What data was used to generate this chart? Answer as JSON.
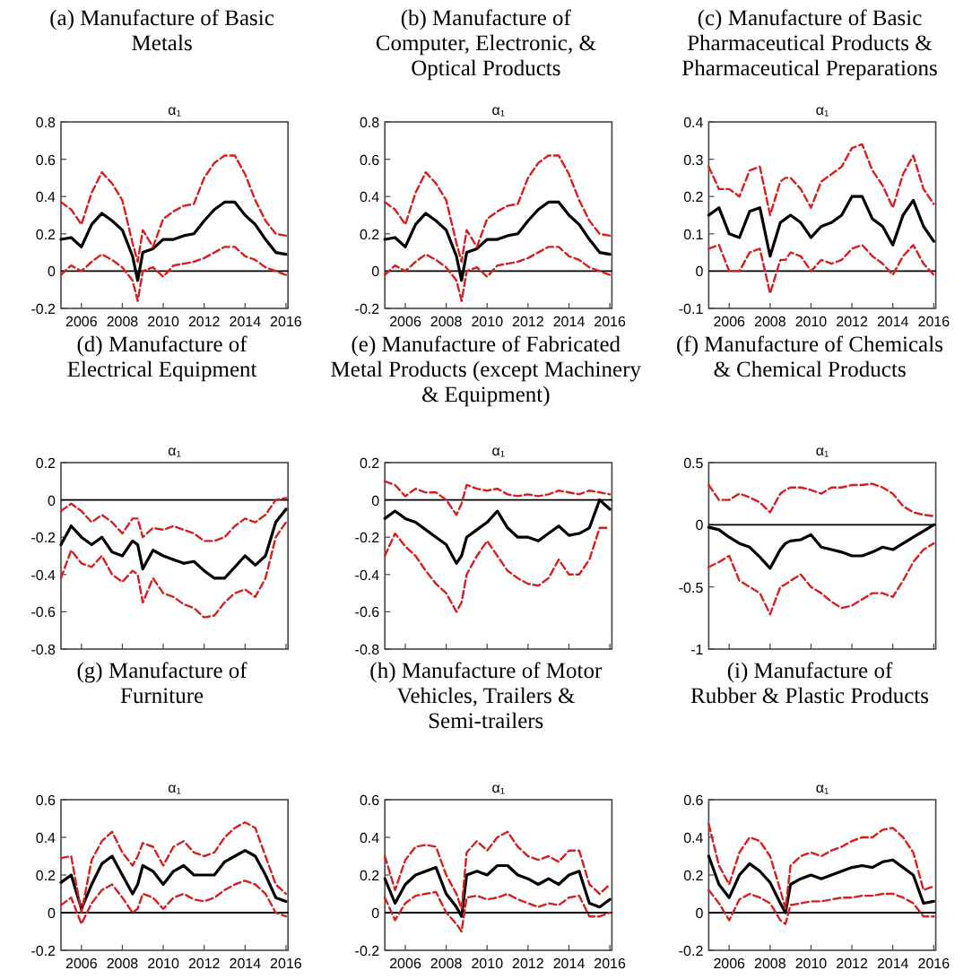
{
  "chart_data": [
    {
      "type": "line",
      "title": "(a) Manufacture of Basic\nMetals",
      "subtitle": "α₁",
      "x": [
        2005,
        2005.5,
        2006,
        2006.5,
        2007,
        2007.5,
        2008,
        2008.5,
        2008.75,
        2009,
        2009.5,
        2010,
        2010.5,
        2011,
        2011.5,
        2012,
        2012.5,
        2013,
        2013.5,
        2014,
        2014.5,
        2015,
        2015.5,
        2016
      ],
      "xlim": [
        2005,
        2016.1
      ],
      "xticks": [
        2006,
        2008,
        2010,
        2012,
        2014,
        2016
      ],
      "ylim": [
        -0.2,
        0.8
      ],
      "yticks": [
        -0.2,
        0,
        0.2,
        0.4,
        0.6,
        0.8
      ],
      "ref_lines": [
        {
          "axis": "y",
          "value": 0,
          "color": "#000000"
        }
      ],
      "series": [
        {
          "color": "#000000",
          "line_style": "solid",
          "values": [
            0.17,
            0.18,
            0.13,
            0.25,
            0.31,
            0.27,
            0.22,
            0.08,
            -0.05,
            0.1,
            0.12,
            0.17,
            0.17,
            0.19,
            0.2,
            0.27,
            0.33,
            0.37,
            0.37,
            0.3,
            0.25,
            0.17,
            0.1,
            0.09
          ]
        },
        {
          "color": "#d42020",
          "line_style": "dashed",
          "values": [
            0.37,
            0.33,
            0.25,
            0.42,
            0.53,
            0.47,
            0.38,
            0.15,
            0.05,
            0.22,
            0.13,
            0.28,
            0.32,
            0.35,
            0.36,
            0.5,
            0.58,
            0.62,
            0.62,
            0.52,
            0.38,
            0.27,
            0.2,
            0.19
          ]
        },
        {
          "color": "#d42020",
          "line_style": "dashed",
          "values": [
            -0.02,
            0.03,
            0.0,
            0.05,
            0.09,
            0.06,
            0.02,
            -0.05,
            -0.16,
            0.0,
            0.02,
            -0.03,
            0.03,
            0.04,
            0.05,
            0.07,
            0.1,
            0.13,
            0.13,
            0.08,
            0.06,
            0.02,
            0.0,
            -0.02
          ]
        }
      ]
    },
    {
      "type": "line",
      "title": "(b) Manufacture of\nComputer, Electronic, &\nOptical Products",
      "subtitle": "α₁",
      "x": [
        2005,
        2005.5,
        2006,
        2006.5,
        2007,
        2007.5,
        2008,
        2008.5,
        2008.75,
        2009,
        2009.5,
        2010,
        2010.5,
        2011,
        2011.5,
        2012,
        2012.5,
        2013,
        2013.5,
        2014,
        2014.5,
        2015,
        2015.5,
        2016
      ],
      "xlim": [
        2005,
        2016.1
      ],
      "xticks": [
        2006,
        2008,
        2010,
        2012,
        2014,
        2016
      ],
      "ylim": [
        -0.2,
        0.8
      ],
      "yticks": [
        -0.2,
        0,
        0.2,
        0.4,
        0.6,
        0.8
      ],
      "ref_lines": [
        {
          "axis": "y",
          "value": 0,
          "color": "#000000"
        }
      ],
      "series": [
        {
          "color": "#000000",
          "line_style": "solid",
          "values": [
            0.17,
            0.18,
            0.13,
            0.25,
            0.31,
            0.27,
            0.22,
            0.08,
            -0.05,
            0.1,
            0.12,
            0.17,
            0.17,
            0.19,
            0.2,
            0.27,
            0.33,
            0.37,
            0.37,
            0.3,
            0.25,
            0.17,
            0.1,
            0.09
          ]
        },
        {
          "color": "#d42020",
          "line_style": "dashed",
          "values": [
            0.37,
            0.33,
            0.25,
            0.42,
            0.53,
            0.47,
            0.38,
            0.15,
            0.05,
            0.22,
            0.13,
            0.28,
            0.32,
            0.35,
            0.36,
            0.5,
            0.58,
            0.62,
            0.62,
            0.52,
            0.38,
            0.27,
            0.2,
            0.19
          ]
        },
        {
          "color": "#d42020",
          "line_style": "dashed",
          "values": [
            -0.02,
            0.03,
            0.0,
            0.05,
            0.09,
            0.06,
            0.02,
            -0.05,
            -0.16,
            0.0,
            0.02,
            -0.03,
            0.03,
            0.04,
            0.05,
            0.07,
            0.1,
            0.13,
            0.13,
            0.08,
            0.06,
            0.02,
            0.0,
            -0.02
          ]
        }
      ]
    },
    {
      "type": "line",
      "title": "(c) Manufacture of Basic\nPharmaceutical Products &\nPharmaceutical Preparations",
      "subtitle": "α₁",
      "x": [
        2005,
        2005.5,
        2006,
        2006.5,
        2007,
        2007.5,
        2008,
        2008.5,
        2008.75,
        2009,
        2009.5,
        2010,
        2010.5,
        2011,
        2011.5,
        2012,
        2012.5,
        2013,
        2013.5,
        2014,
        2014.5,
        2015,
        2015.5,
        2016
      ],
      "xlim": [
        2005,
        2016.1
      ],
      "xticks": [
        2006,
        2008,
        2010,
        2012,
        2014,
        2016
      ],
      "ylim": [
        -0.1,
        0.4
      ],
      "yticks": [
        -0.1,
        0,
        0.1,
        0.2,
        0.3,
        0.4
      ],
      "ref_lines": [
        {
          "axis": "y",
          "value": 0,
          "color": "#000000"
        }
      ],
      "series": [
        {
          "color": "#000000",
          "line_style": "solid",
          "values": [
            0.15,
            0.17,
            0.1,
            0.09,
            0.16,
            0.17,
            0.04,
            0.13,
            0.14,
            0.15,
            0.13,
            0.09,
            0.12,
            0.13,
            0.15,
            0.2,
            0.2,
            0.14,
            0.12,
            0.07,
            0.15,
            0.19,
            0.12,
            0.08
          ]
        },
        {
          "color": "#d42020",
          "line_style": "dashed",
          "values": [
            0.28,
            0.22,
            0.22,
            0.2,
            0.27,
            0.28,
            0.15,
            0.24,
            0.25,
            0.25,
            0.22,
            0.17,
            0.24,
            0.26,
            0.28,
            0.33,
            0.34,
            0.27,
            0.23,
            0.17,
            0.26,
            0.31,
            0.22,
            0.18
          ]
        },
        {
          "color": "#d42020",
          "line_style": "dashed",
          "values": [
            0.06,
            0.07,
            0.0,
            0.0,
            0.05,
            0.06,
            -0.06,
            0.03,
            0.03,
            0.05,
            0.04,
            0.0,
            0.03,
            0.02,
            0.03,
            0.06,
            0.07,
            0.04,
            0.02,
            -0.01,
            0.04,
            0.07,
            0.02,
            -0.01
          ]
        }
      ]
    },
    {
      "type": "line",
      "title": "(d) Manufacture of\nElectrical Equipment",
      "subtitle": "α₁",
      "tick_labels": "y",
      "x": [
        2005,
        2005.5,
        2006,
        2006.5,
        2007,
        2007.5,
        2008,
        2008.5,
        2008.75,
        2009,
        2009.5,
        2010,
        2010.5,
        2011,
        2011.5,
        2012,
        2012.5,
        2013,
        2013.5,
        2014,
        2014.5,
        2015,
        2015.5,
        2016
      ],
      "xlim": [
        2005,
        2016.1
      ],
      "xticks": [
        2006,
        2008,
        2010,
        2012,
        2014,
        2016
      ],
      "ylim": [
        -0.8,
        0.2
      ],
      "yticks": [
        -0.8,
        -0.6,
        -0.4,
        -0.2,
        0,
        0.2
      ],
      "ref_lines": [
        {
          "axis": "y",
          "value": 0,
          "color": "#000000"
        }
      ],
      "series": [
        {
          "color": "#000000",
          "line_style": "solid",
          "values": [
            -0.24,
            -0.14,
            -0.2,
            -0.24,
            -0.2,
            -0.28,
            -0.3,
            -0.22,
            -0.24,
            -0.37,
            -0.27,
            -0.3,
            -0.32,
            -0.34,
            -0.33,
            -0.38,
            -0.42,
            -0.42,
            -0.36,
            -0.3,
            -0.35,
            -0.3,
            -0.12,
            -0.05
          ]
        },
        {
          "color": "#d42020",
          "line_style": "dashed",
          "values": [
            -0.06,
            -0.02,
            -0.06,
            -0.12,
            -0.08,
            -0.12,
            -0.18,
            -0.1,
            -0.1,
            -0.2,
            -0.15,
            -0.16,
            -0.14,
            -0.16,
            -0.18,
            -0.22,
            -0.22,
            -0.2,
            -0.14,
            -0.1,
            -0.12,
            -0.08,
            0.0,
            0.01
          ]
        },
        {
          "color": "#d42020",
          "line_style": "dashed",
          "values": [
            -0.42,
            -0.27,
            -0.34,
            -0.36,
            -0.3,
            -0.4,
            -0.44,
            -0.38,
            -0.4,
            -0.55,
            -0.42,
            -0.5,
            -0.52,
            -0.56,
            -0.58,
            -0.63,
            -0.62,
            -0.55,
            -0.5,
            -0.48,
            -0.52,
            -0.42,
            -0.2,
            -0.12
          ]
        }
      ]
    },
    {
      "type": "line",
      "title": "(e) Manufacture of Fabricated\nMetal Products (except Machinery\n& Equipment)",
      "subtitle": "α₁",
      "tick_labels": "y",
      "x": [
        2005,
        2005.5,
        2006,
        2006.5,
        2007,
        2007.5,
        2008,
        2008.5,
        2008.75,
        2009,
        2009.5,
        2010,
        2010.5,
        2011,
        2011.5,
        2012,
        2012.5,
        2013,
        2013.5,
        2014,
        2014.5,
        2015,
        2015.5,
        2016
      ],
      "xlim": [
        2005,
        2016.1
      ],
      "xticks": [
        2006,
        2008,
        2010,
        2012,
        2014,
        2016
      ],
      "ylim": [
        -0.8,
        0.2
      ],
      "yticks": [
        -0.8,
        -0.6,
        -0.4,
        -0.2,
        0,
        0.2
      ],
      "ref_lines": [
        {
          "axis": "y",
          "value": 0,
          "color": "#000000"
        }
      ],
      "series": [
        {
          "color": "#000000",
          "line_style": "solid",
          "values": [
            -0.1,
            -0.06,
            -0.1,
            -0.12,
            -0.16,
            -0.2,
            -0.24,
            -0.34,
            -0.3,
            -0.2,
            -0.16,
            -0.12,
            -0.06,
            -0.15,
            -0.2,
            -0.2,
            -0.22,
            -0.18,
            -0.14,
            -0.19,
            -0.18,
            -0.15,
            0.0,
            -0.05
          ]
        },
        {
          "color": "#d42020",
          "line_style": "dashed",
          "values": [
            0.1,
            0.08,
            0.02,
            0.06,
            0.04,
            0.04,
            0.0,
            -0.08,
            -0.02,
            0.08,
            0.06,
            0.05,
            0.06,
            0.03,
            0.02,
            0.03,
            0.02,
            0.03,
            0.05,
            0.04,
            0.03,
            0.05,
            0.04,
            0.03
          ]
        },
        {
          "color": "#d42020",
          "line_style": "dashed",
          "values": [
            -0.3,
            -0.18,
            -0.25,
            -0.3,
            -0.38,
            -0.45,
            -0.5,
            -0.6,
            -0.55,
            -0.4,
            -0.3,
            -0.22,
            -0.3,
            -0.38,
            -0.42,
            -0.45,
            -0.46,
            -0.42,
            -0.32,
            -0.4,
            -0.4,
            -0.32,
            -0.15,
            -0.15
          ]
        }
      ]
    },
    {
      "type": "line",
      "title": "(f) Manufacture of Chemicals\n& Chemical Products",
      "subtitle": "α₁",
      "tick_labels": "y",
      "x": [
        2005,
        2005.5,
        2006,
        2006.5,
        2007,
        2007.5,
        2008,
        2008.5,
        2008.75,
        2009,
        2009.5,
        2010,
        2010.5,
        2011,
        2011.5,
        2012,
        2012.5,
        2013,
        2013.5,
        2014,
        2014.5,
        2015,
        2015.5,
        2016
      ],
      "xlim": [
        2005,
        2016.1
      ],
      "xticks": [
        2006,
        2008,
        2010,
        2012,
        2014,
        2016
      ],
      "ylim": [
        -1,
        0.5
      ],
      "yticks": [
        -1,
        -0.5,
        0,
        0.5
      ],
      "ref_lines": [
        {
          "axis": "y",
          "value": 0,
          "color": "#000000"
        }
      ],
      "series": [
        {
          "color": "#000000",
          "line_style": "solid",
          "values": [
            -0.02,
            -0.04,
            -0.1,
            -0.15,
            -0.18,
            -0.26,
            -0.35,
            -0.2,
            -0.15,
            -0.13,
            -0.12,
            -0.08,
            -0.18,
            -0.2,
            -0.22,
            -0.25,
            -0.25,
            -0.22,
            -0.18,
            -0.2,
            -0.15,
            -0.1,
            -0.05,
            0.0
          ]
        },
        {
          "color": "#d42020",
          "line_style": "dashed",
          "values": [
            0.32,
            0.2,
            0.2,
            0.25,
            0.22,
            0.18,
            0.1,
            0.25,
            0.28,
            0.3,
            0.3,
            0.28,
            0.25,
            0.3,
            0.3,
            0.32,
            0.32,
            0.33,
            0.3,
            0.25,
            0.15,
            0.1,
            0.08,
            0.07
          ]
        },
        {
          "color": "#d42020",
          "line_style": "dashed",
          "values": [
            -0.34,
            -0.3,
            -0.25,
            -0.45,
            -0.5,
            -0.55,
            -0.72,
            -0.5,
            -0.48,
            -0.45,
            -0.4,
            -0.5,
            -0.55,
            -0.62,
            -0.67,
            -0.65,
            -0.6,
            -0.55,
            -0.55,
            -0.58,
            -0.45,
            -0.3,
            -0.2,
            -0.15
          ]
        }
      ]
    },
    {
      "type": "line",
      "title": "(g) Manufacture of\nFurniture",
      "subtitle": "α₁",
      "x": [
        2005,
        2005.5,
        2006,
        2006.5,
        2007,
        2007.5,
        2008,
        2008.5,
        2008.75,
        2009,
        2009.5,
        2010,
        2010.5,
        2011,
        2011.5,
        2012,
        2012.5,
        2013,
        2013.5,
        2014,
        2014.5,
        2015,
        2015.5,
        2016
      ],
      "xlim": [
        2005,
        2016.1
      ],
      "xticks": [
        2006,
        2008,
        2010,
        2012,
        2014,
        2016
      ],
      "ylim": [
        -0.2,
        0.6
      ],
      "yticks": [
        -0.2,
        0,
        0.2,
        0.4,
        0.6
      ],
      "ref_lines": [
        {
          "axis": "y",
          "value": 0,
          "color": "#000000"
        }
      ],
      "series": [
        {
          "color": "#000000",
          "line_style": "solid",
          "values": [
            0.16,
            0.2,
            0.02,
            0.15,
            0.26,
            0.3,
            0.2,
            0.1,
            0.15,
            0.25,
            0.22,
            0.15,
            0.22,
            0.25,
            0.2,
            0.2,
            0.2,
            0.27,
            0.3,
            0.33,
            0.3,
            0.2,
            0.08,
            0.06
          ]
        },
        {
          "color": "#d42020",
          "line_style": "dashed",
          "values": [
            0.29,
            0.3,
            0.0,
            0.28,
            0.38,
            0.43,
            0.32,
            0.25,
            0.3,
            0.37,
            0.35,
            0.25,
            0.35,
            0.38,
            0.32,
            0.3,
            0.32,
            0.4,
            0.45,
            0.48,
            0.45,
            0.3,
            0.15,
            0.1
          ]
        },
        {
          "color": "#d42020",
          "line_style": "dashed",
          "values": [
            0.04,
            0.08,
            -0.06,
            0.05,
            0.12,
            0.15,
            0.08,
            0.0,
            0.02,
            0.1,
            0.08,
            0.02,
            0.08,
            0.1,
            0.07,
            0.06,
            0.08,
            0.12,
            0.15,
            0.17,
            0.15,
            0.1,
            0.0,
            -0.02
          ]
        }
      ]
    },
    {
      "type": "line",
      "title": "(h) Manufacture of Motor\nVehicles, Trailers &\nSemi-trailers",
      "subtitle": "α₁",
      "x": [
        2005,
        2005.5,
        2006,
        2006.5,
        2007,
        2007.5,
        2008,
        2008.5,
        2008.75,
        2009,
        2009.5,
        2010,
        2010.5,
        2011,
        2011.5,
        2012,
        2012.5,
        2013,
        2013.5,
        2014,
        2014.5,
        2015,
        2015.5,
        2016
      ],
      "xlim": [
        2005,
        2016.1
      ],
      "xticks": [
        2006,
        2008,
        2010,
        2012,
        2014,
        2016
      ],
      "ylim": [
        -0.2,
        0.6
      ],
      "yticks": [
        -0.2,
        0,
        0.2,
        0.4,
        0.6
      ],
      "ref_lines": [
        {
          "axis": "y",
          "value": 0,
          "color": "#000000"
        }
      ],
      "series": [
        {
          "color": "#000000",
          "line_style": "solid",
          "values": [
            0.18,
            0.05,
            0.15,
            0.2,
            0.22,
            0.24,
            0.1,
            0.03,
            -0.02,
            0.2,
            0.22,
            0.2,
            0.25,
            0.25,
            0.2,
            0.18,
            0.15,
            0.18,
            0.15,
            0.2,
            0.22,
            0.05,
            0.03,
            0.07
          ]
        },
        {
          "color": "#d42020",
          "line_style": "dashed",
          "values": [
            0.3,
            0.12,
            0.28,
            0.35,
            0.36,
            0.35,
            0.2,
            0.1,
            0.02,
            0.32,
            0.38,
            0.33,
            0.4,
            0.43,
            0.35,
            0.3,
            0.28,
            0.3,
            0.27,
            0.33,
            0.33,
            0.15,
            0.1,
            0.15
          ]
        },
        {
          "color": "#d42020",
          "line_style": "dashed",
          "values": [
            0.08,
            -0.04,
            0.05,
            0.09,
            0.1,
            0.11,
            0.0,
            -0.06,
            -0.1,
            0.08,
            0.09,
            0.07,
            0.08,
            0.1,
            0.07,
            0.05,
            0.03,
            0.05,
            0.04,
            0.08,
            0.09,
            -0.02,
            -0.02,
            0.0
          ]
        }
      ]
    },
    {
      "type": "line",
      "title": "(i) Manufacture of\nRubber & Plastic Products",
      "subtitle": "α₁",
      "x": [
        2005,
        2005.5,
        2006,
        2006.5,
        2007,
        2007.5,
        2008,
        2008.5,
        2008.75,
        2009,
        2009.5,
        2010,
        2010.5,
        2011,
        2011.5,
        2012,
        2012.5,
        2013,
        2013.5,
        2014,
        2014.5,
        2015,
        2015.5,
        2016
      ],
      "xlim": [
        2005,
        2016.1
      ],
      "xticks": [
        2006,
        2008,
        2010,
        2012,
        2014,
        2016
      ],
      "ylim": [
        -0.2,
        0.6
      ],
      "yticks": [
        -0.2,
        0,
        0.2,
        0.4,
        0.6
      ],
      "ref_lines": [
        {
          "axis": "y",
          "value": 0,
          "color": "#000000"
        }
      ],
      "series": [
        {
          "color": "#000000",
          "line_style": "solid",
          "values": [
            0.3,
            0.15,
            0.08,
            0.2,
            0.26,
            0.22,
            0.16,
            0.05,
            0.0,
            0.15,
            0.18,
            0.2,
            0.18,
            0.2,
            0.22,
            0.24,
            0.25,
            0.24,
            0.27,
            0.28,
            0.24,
            0.2,
            0.05,
            0.06
          ]
        },
        {
          "color": "#d42020",
          "line_style": "dashed",
          "values": [
            0.47,
            0.25,
            0.15,
            0.32,
            0.4,
            0.38,
            0.3,
            0.12,
            0.02,
            0.25,
            0.3,
            0.32,
            0.3,
            0.33,
            0.35,
            0.38,
            0.4,
            0.4,
            0.44,
            0.45,
            0.4,
            0.32,
            0.12,
            0.14
          ]
        },
        {
          "color": "#d42020",
          "line_style": "dashed",
          "values": [
            0.12,
            0.05,
            -0.04,
            0.07,
            0.1,
            0.08,
            0.05,
            -0.04,
            -0.06,
            0.04,
            0.05,
            0.06,
            0.06,
            0.07,
            0.08,
            0.08,
            0.09,
            0.09,
            0.1,
            0.1,
            0.08,
            0.05,
            -0.02,
            -0.02
          ]
        }
      ]
    }
  ]
}
